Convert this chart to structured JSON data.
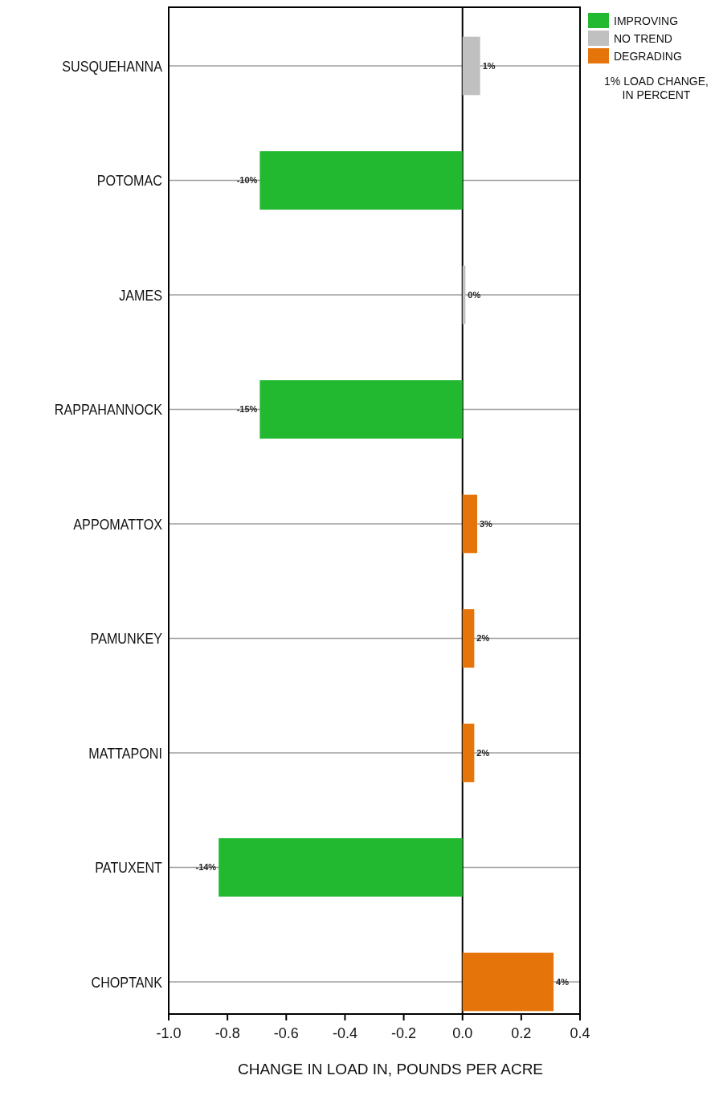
{
  "chart_data": {
    "type": "bar",
    "orientation": "horizontal",
    "categories": [
      "SUSQUEHANNA",
      "POTOMAC",
      "JAMES",
      "RAPPAHANNOCK",
      "APPOMATTOX",
      "PAMUNKEY",
      "MATTAPONI",
      "PATUXENT",
      "CHOPTANK"
    ],
    "series": [
      {
        "name": "IMPROVING",
        "color": "#22b931",
        "values": [
          null,
          -0.69,
          null,
          -0.69,
          null,
          null,
          null,
          -0.83,
          null
        ]
      },
      {
        "name": "NO TREND",
        "color": "#c0c0c0",
        "values": [
          0.06,
          null,
          0.01,
          null,
          null,
          null,
          null,
          null,
          null
        ]
      },
      {
        "name": "DEGRADING",
        "color": "#e5740a",
        "values": [
          null,
          null,
          null,
          null,
          0.05,
          0.04,
          0.04,
          null,
          0.31
        ]
      }
    ],
    "xlabel": "CHANGE IN LOAD IN, POUNDS PER ACRE",
    "xlim": [
      -1.0,
      0.4
    ],
    "xticks": [
      {
        "value": -1.0,
        "label": "-1.0"
      },
      -0.8,
      -0.6,
      -0.4,
      -0.2,
      {
        "value": 0,
        "label": "0.0"
      },
      0.2,
      0.4
    ],
    "grid": "y",
    "ref_lines": [
      {
        "axis": "x",
        "value": 0,
        "color": "#000000"
      }
    ],
    "legend": "top right",
    "annotations": [
      "1% LOAD CHANGE, IN PERCENT",
      {
        "text": "1%",
        "x": 0.06,
        "y": "SUSQUEHANNA"
      },
      {
        "text": "-10%",
        "x": -0.69,
        "y": "POTOMAC"
      },
      {
        "text": "0%",
        "x": 0.01,
        "y": "JAMES"
      },
      {
        "text": "-15%",
        "x": -0.69,
        "y": "RAPPAHANNOCK"
      },
      {
        "text": "3%",
        "x": 0.05,
        "y": "APPOMATTOX"
      },
      {
        "text": "2%",
        "x": 0.04,
        "y": "PAMUNKEY"
      },
      {
        "text": "2%",
        "x": 0.04,
        "y": "MATTAPONI"
      },
      {
        "text": "-14%",
        "x": -0.83,
        "y": "PATUXENT"
      },
      {
        "text": "4%",
        "x": 0.31,
        "y": "CHOPTANK"
      }
    ]
  }
}
